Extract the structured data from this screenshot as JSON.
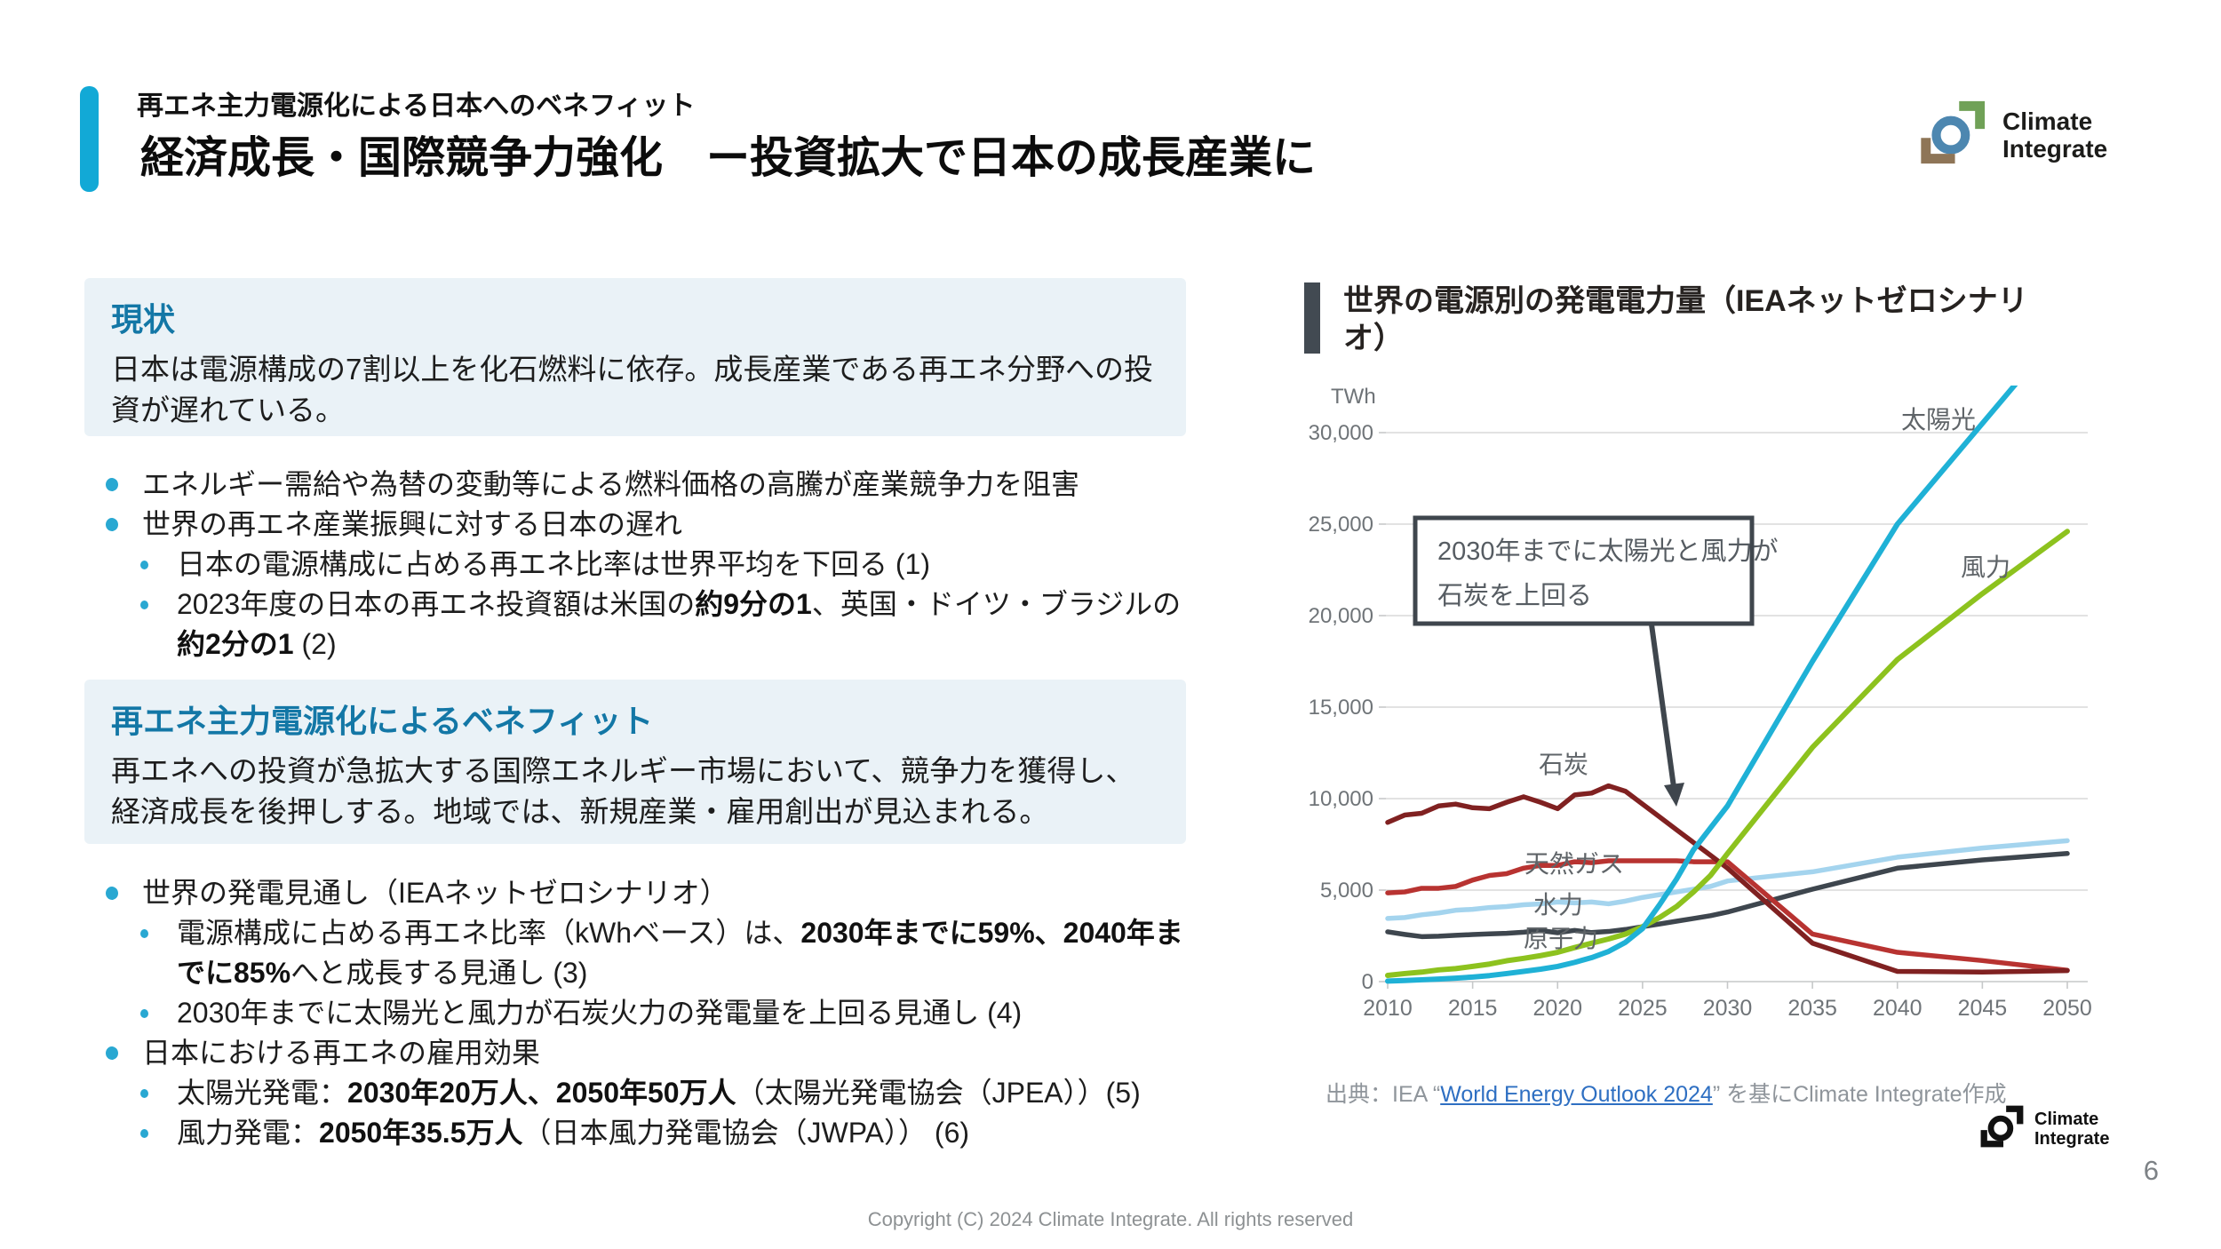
{
  "header": {
    "subtitle": "再エネ主力電源化による日本へのベネフィット",
    "title": "経済成長・国際競争力強化　ー投資拡大で日本の成長産業に"
  },
  "logo": {
    "line1": "Climate",
    "line2": "Integrate",
    "mark_colors": {
      "green": "#70a157",
      "blue": "#4d87b0",
      "brown": "#8e7557",
      "mono": "#111111"
    }
  },
  "left": {
    "status": {
      "heading": "現状",
      "body": "日本は電源構成の7割以上を化石燃料に依存。成長産業である再エネ分野への投資が遅れている。"
    },
    "bullets1": [
      {
        "level": 1,
        "segments": [
          {
            "t": "エネルギー需給や為替の変動等による燃料価格の高騰が産業競争力を阻害",
            "b": false
          }
        ]
      },
      {
        "level": 1,
        "segments": [
          {
            "t": "世界の再エネ産業振興に対する日本の遅れ",
            "b": false
          }
        ]
      },
      {
        "level": 2,
        "segments": [
          {
            "t": "日本の電源構成に占める再エネ比率は世界平均を下回る (1)",
            "b": false
          }
        ]
      },
      {
        "level": 2,
        "segments": [
          {
            "t": "2023年度の日本の再エネ投資額は米国の",
            "b": false
          },
          {
            "t": "約9分の1",
            "b": true
          },
          {
            "t": "、英国・ドイツ・ブラジルの",
            "b": false
          },
          {
            "t": "約2分の1",
            "b": true
          },
          {
            "t": " (2)",
            "b": false
          }
        ]
      }
    ],
    "benefit": {
      "heading": "再エネ主力電源化によるベネフィット",
      "body": "再エネへの投資が急拡大する国際エネルギー市場において、競争力を獲得し、経済成長を後押しする。地域では、新規産業・雇用創出が見込まれる。"
    },
    "bullets2": [
      {
        "level": 1,
        "segments": [
          {
            "t": "世界の発電見通し（IEAネットゼロシナリオ）",
            "b": false
          }
        ]
      },
      {
        "level": 2,
        "segments": [
          {
            "t": "電源構成に占める再エネ比率（kWhベース）は、",
            "b": false
          },
          {
            "t": "2030年までに59%、2040年までに85%",
            "b": true
          },
          {
            "t": "へと成長する見通し (3)",
            "b": false
          }
        ]
      },
      {
        "level": 2,
        "segments": [
          {
            "t": "2030年までに太陽光と風力が石炭火力の発電量を上回る見通し (4)",
            "b": false
          }
        ]
      },
      {
        "level": 1,
        "segments": [
          {
            "t": "日本における再エネの雇用効果",
            "b": false
          }
        ]
      },
      {
        "level": 2,
        "segments": [
          {
            "t": "太陽光発電：",
            "b": false
          },
          {
            "t": "2030年20万人、2050年50万人",
            "b": true
          },
          {
            "t": "（太陽光発電協会（JPEA））(5)",
            "b": false
          }
        ]
      },
      {
        "level": 2,
        "segments": [
          {
            "t": "風力発電：",
            "b": false
          },
          {
            "t": "2050年35.5万人",
            "b": true
          },
          {
            "t": "（日本風力発電協会（JWPA）） (6)",
            "b": false
          }
        ]
      }
    ]
  },
  "chart": {
    "title": "世界の電源別の発電電力量（IEAネットゼロシナリオ）",
    "y_unit": "TWh",
    "annotation": {
      "line1": "2030年までに太陽光と風力が",
      "line2": "石炭を上回る",
      "border_color": "#3f464d",
      "text_color": "#565c62"
    },
    "source": {
      "prefix": "出典：IEA “",
      "link_text": "World Energy Outlook 2024",
      "suffix": "” を基にClimate Integrate作成"
    }
  },
  "chart_data": {
    "type": "line",
    "title": "世界の電源別の発電電力量（IEAネットゼロシナリオ）",
    "xlabel": "",
    "ylabel": "TWh",
    "xlim": [
      2010,
      2050
    ],
    "ylim": [
      0,
      30000
    ],
    "y_tick_step": 5000,
    "x_tick_step": 5,
    "grid": "horizontal",
    "legend_position": "inline-labels",
    "years": [
      2010,
      2011,
      2012,
      2013,
      2014,
      2015,
      2016,
      2017,
      2018,
      2019,
      2020,
      2021,
      2022,
      2023,
      2024,
      2025,
      2026,
      2027,
      2028,
      2029,
      2030,
      2035,
      2040,
      2045,
      2050
    ],
    "series": [
      {
        "key": "hydro",
        "label": "水力",
        "color": "#a4d4ee",
        "width": 5.5,
        "values": [
          3450,
          3500,
          3650,
          3750,
          3900,
          3950,
          4050,
          4100,
          4200,
          4250,
          4350,
          4300,
          4350,
          4250,
          4400,
          4600,
          4750,
          4900,
          5050,
          5200,
          5500,
          6000,
          6800,
          7300,
          7700
        ]
      },
      {
        "key": "nuclear",
        "label": "原子力",
        "color": "#3e464e",
        "width": 5.5,
        "values": [
          2720,
          2580,
          2460,
          2480,
          2530,
          2570,
          2610,
          2640,
          2700,
          2790,
          2670,
          2800,
          2680,
          2740,
          2850,
          3000,
          3150,
          3300,
          3450,
          3600,
          3800,
          5050,
          6200,
          6650,
          7000
        ]
      },
      {
        "key": "gas",
        "label": "天然ガス",
        "color": "#b83331",
        "width": 5.5,
        "values": [
          4850,
          4900,
          5100,
          5100,
          5200,
          5550,
          5800,
          5900,
          6200,
          6350,
          6350,
          6550,
          6500,
          6600,
          6600,
          6600,
          6600,
          6600,
          6550,
          6550,
          6550,
          2600,
          1600,
          1150,
          620
        ]
      },
      {
        "key": "coal",
        "label": "石炭",
        "color": "#802121",
        "width": 5.5,
        "values": [
          8700,
          9100,
          9200,
          9600,
          9700,
          9500,
          9450,
          9800,
          10100,
          9800,
          9450,
          10200,
          10300,
          10700,
          10400,
          9700,
          9000,
          8300,
          7600,
          6900,
          6200,
          2100,
          560,
          520,
          600
        ]
      },
      {
        "key": "wind",
        "label": "風力",
        "color": "#8dc21e",
        "width": 6,
        "values": [
          340,
          440,
          520,
          640,
          710,
          830,
          960,
          1140,
          1270,
          1420,
          1600,
          1860,
          2100,
          2330,
          2600,
          3000,
          3500,
          4100,
          4900,
          5800,
          7000,
          12800,
          17600,
          21200,
          24600
        ]
      },
      {
        "key": "solar",
        "label": "太陽光",
        "color": "#1fb1d6",
        "width": 6,
        "values": [
          30,
          60,
          100,
          140,
          190,
          250,
          330,
          440,
          560,
          680,
          830,
          1050,
          1310,
          1650,
          2150,
          2900,
          4200,
          5600,
          7200,
          8400,
          9600,
          17500,
          25000,
          30500,
          36000
        ]
      }
    ],
    "annotations": [
      {
        "text": "2030年までに太陽光と風力が石炭を上回る",
        "points_to_year": 2029
      }
    ]
  },
  "footer": {
    "copyright": "Copyright (C) 2024 Climate Integrate. All rights reserved",
    "page_number": "6"
  }
}
